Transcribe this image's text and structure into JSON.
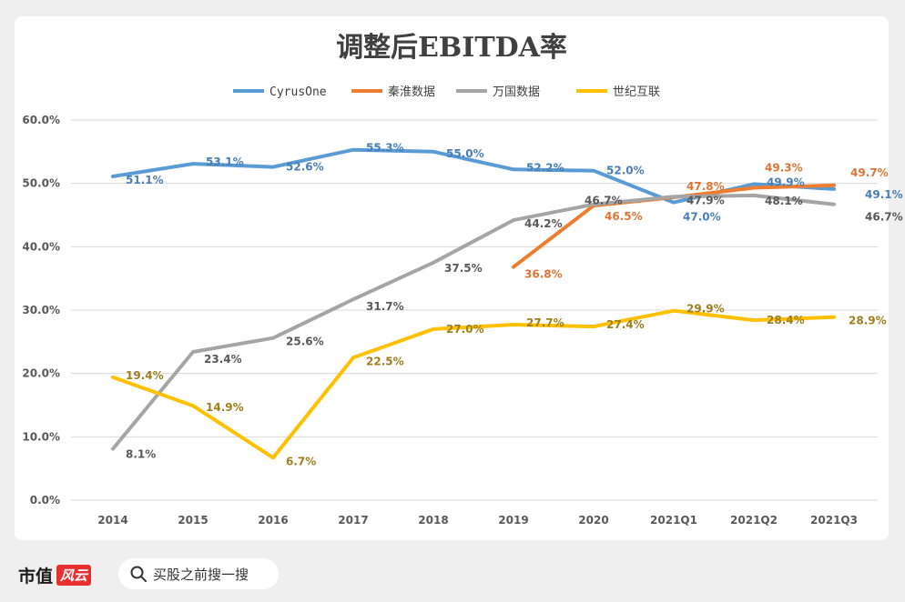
{
  "chart_data": {
    "type": "line",
    "title": "调整后EBITDA率",
    "categories": [
      "2014",
      "2015",
      "2016",
      "2017",
      "2018",
      "2019",
      "2020",
      "2021Q1",
      "2021Q2",
      "2021Q3"
    ],
    "y_ticks": [
      "0.0%",
      "10.0%",
      "20.0%",
      "30.0%",
      "40.0%",
      "50.0%",
      "60.0%"
    ],
    "ylim": [
      0,
      60
    ],
    "grid": true,
    "legend_position": "top",
    "series": [
      {
        "name": "CyrusOne",
        "color": "#5b9bd5",
        "label_color": "#4a7fb5",
        "values": [
          51.1,
          53.1,
          52.6,
          55.3,
          55.0,
          52.2,
          52.0,
          47.0,
          49.9,
          49.1
        ],
        "labels": [
          "51.1%",
          "53.1%",
          "52.6%",
          "55.3%",
          "55.0%",
          "52.2%",
          "52.0%",
          "47.0%",
          "49.9%",
          "49.1%"
        ]
      },
      {
        "name": "秦淮数据",
        "color": "#ed7d31",
        "label_color": "#e07434",
        "values": [
          null,
          null,
          null,
          null,
          null,
          36.8,
          46.5,
          47.8,
          49.3,
          49.7
        ],
        "labels": [
          null,
          null,
          null,
          null,
          null,
          "36.8%",
          "46.5%",
          "47.8%",
          "49.3%",
          "49.7%"
        ]
      },
      {
        "name": "万国数据",
        "color": "#a5a5a5",
        "label_color": "#595959",
        "values": [
          8.1,
          23.4,
          25.6,
          31.7,
          37.5,
          44.2,
          46.7,
          47.9,
          48.1,
          46.7
        ],
        "labels": [
          "8.1%",
          "23.4%",
          "25.6%",
          "31.7%",
          "37.5%",
          "44.2%",
          "46.7%",
          "47.9%",
          "48.1%",
          "46.7%"
        ]
      },
      {
        "name": "世纪互联",
        "color": "#ffc000",
        "label_color": "#9c7f1e",
        "values": [
          19.4,
          14.9,
          6.7,
          22.5,
          27.0,
          27.7,
          27.4,
          29.9,
          28.4,
          28.9
        ],
        "labels": [
          "19.4%",
          "14.9%",
          "6.7%",
          "22.5%",
          "27.0%",
          "27.7%",
          "27.4%",
          "29.9%",
          "28.4%",
          "28.9%"
        ]
      }
    ]
  },
  "footer": {
    "brand_text": "市值",
    "brand_badge": "风云",
    "search_placeholder": "买股之前搜一搜"
  },
  "colors": {
    "page_bg": "#efefef",
    "card_bg": "#ffffff",
    "grid": "#d9d9d9",
    "brand_red": "#e8312f"
  }
}
